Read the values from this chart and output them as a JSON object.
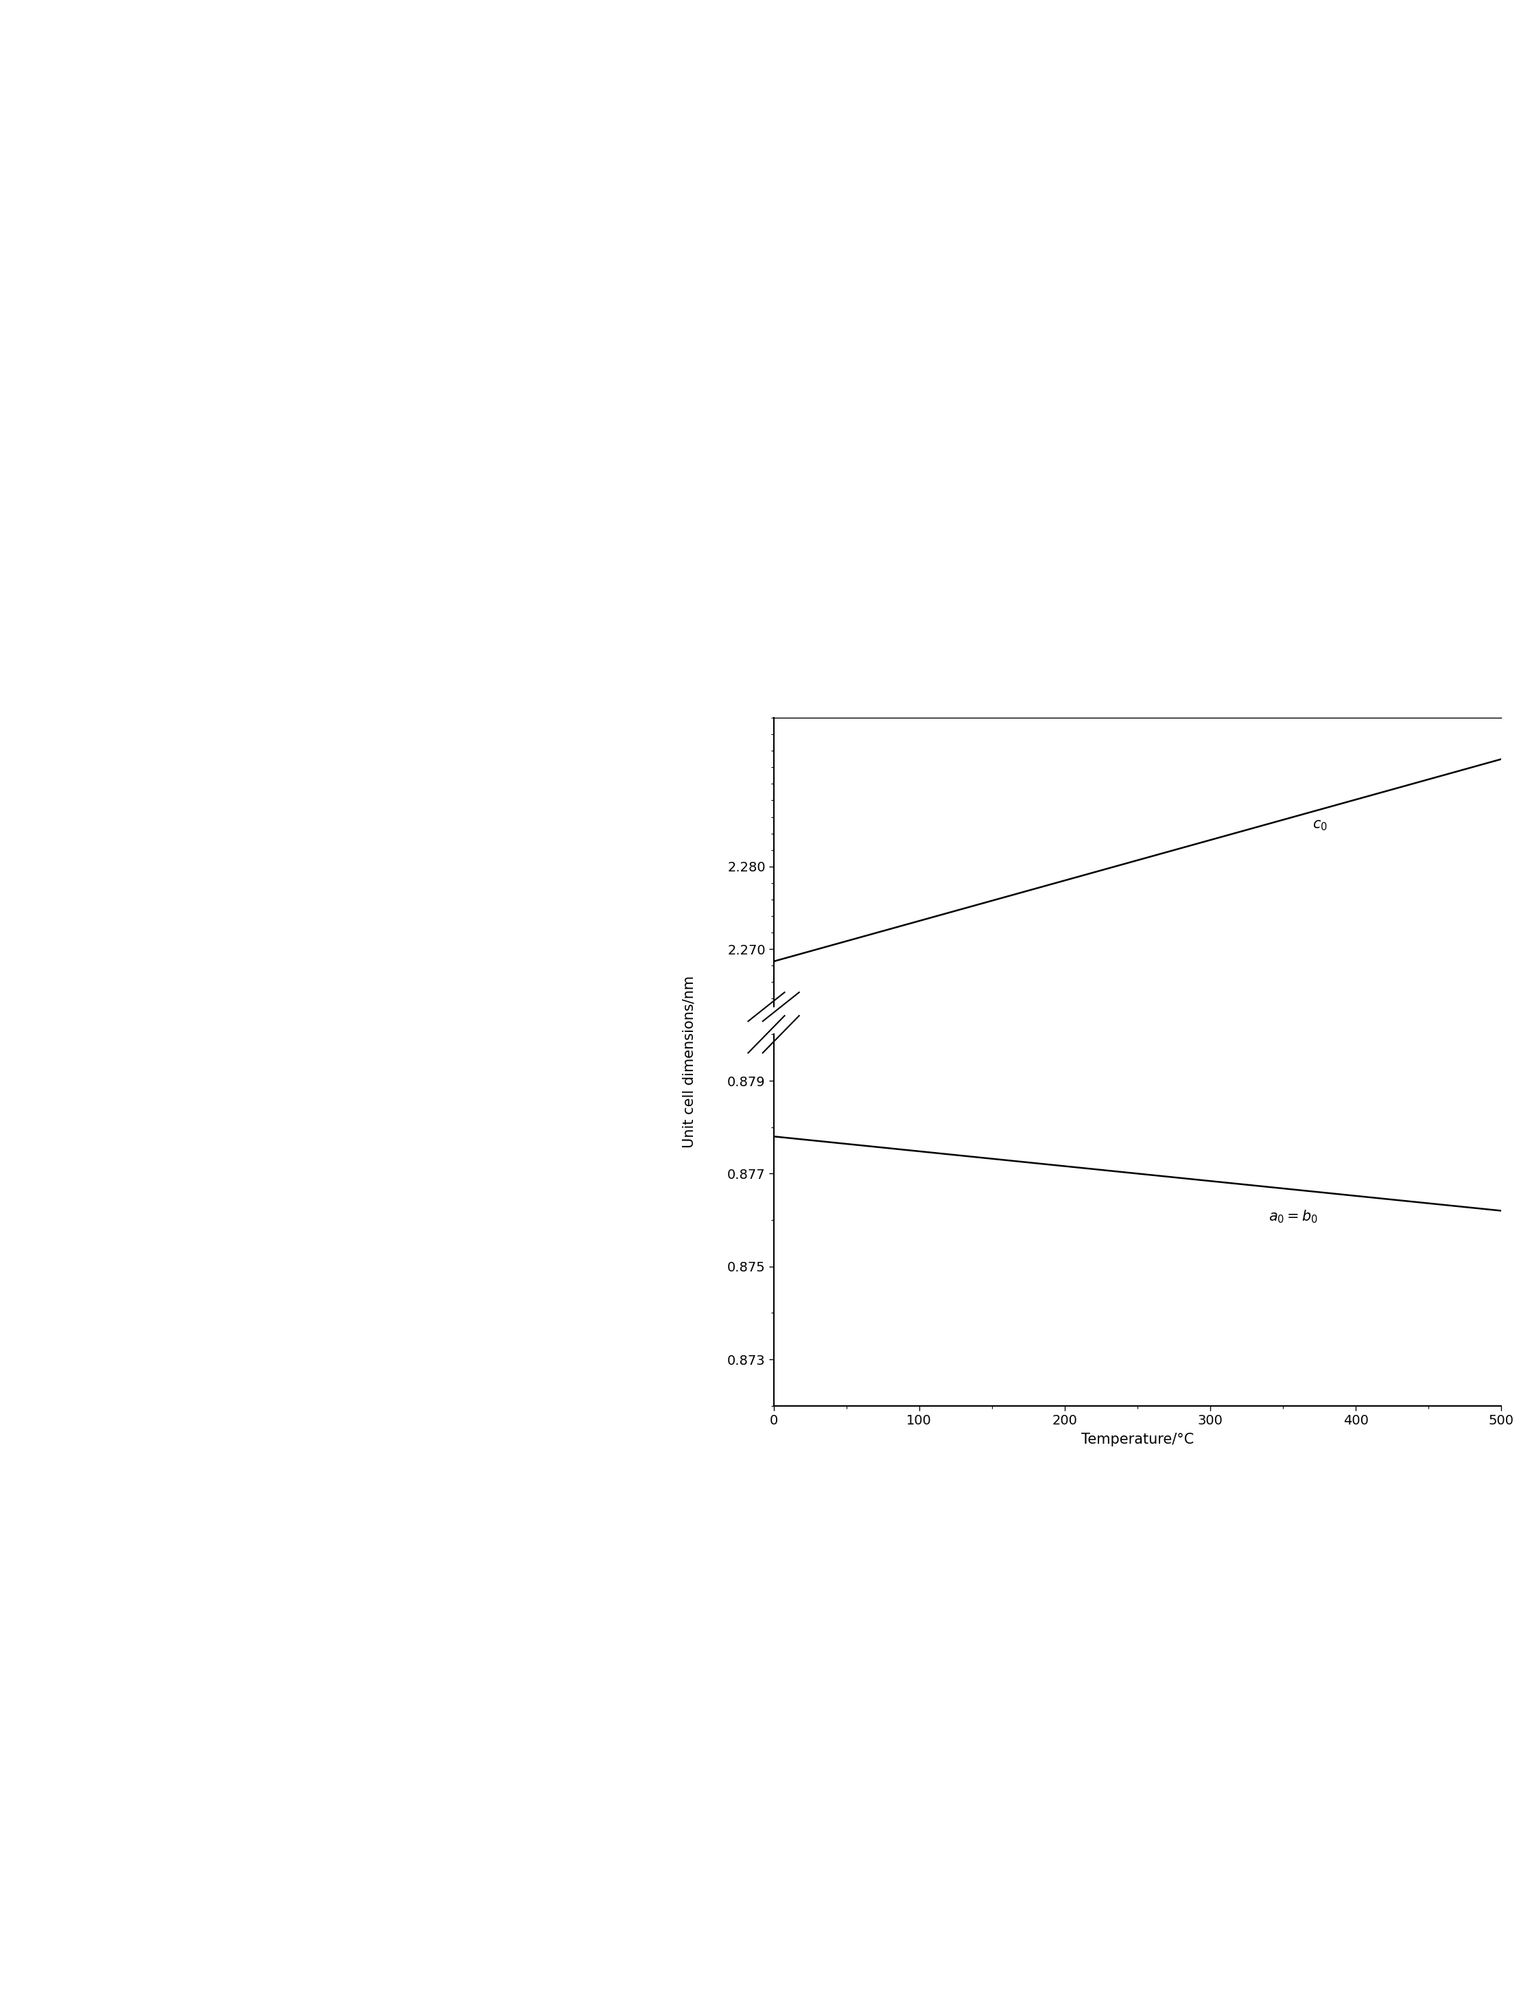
{
  "xlabel": "Temperature/°C",
  "ylabel": "Unit cell dimensions/nm",
  "x_min": 0,
  "x_max": 500,
  "x_ticks": [
    0,
    100,
    200,
    300,
    400,
    500
  ],
  "c_axis": {
    "label": "c_0",
    "x": [
      0,
      500
    ],
    "y": [
      2.2685,
      2.293
    ]
  },
  "ab_axis": {
    "label": "a_0 = b_0",
    "x": [
      0,
      500
    ],
    "y": [
      0.8778,
      0.8762
    ]
  },
  "c_ylim": [
    2.263,
    2.298
  ],
  "ab_ylim": [
    0.872,
    0.88
  ],
  "c_yticks": [
    2.27,
    2.28
  ],
  "ab_yticks": [
    0.873,
    0.875,
    0.877,
    0.879
  ],
  "background_color": "#ffffff",
  "line_color": "#000000",
  "tick_font_size": 14,
  "label_font_size": 15,
  "annotation_font_size": 15
}
